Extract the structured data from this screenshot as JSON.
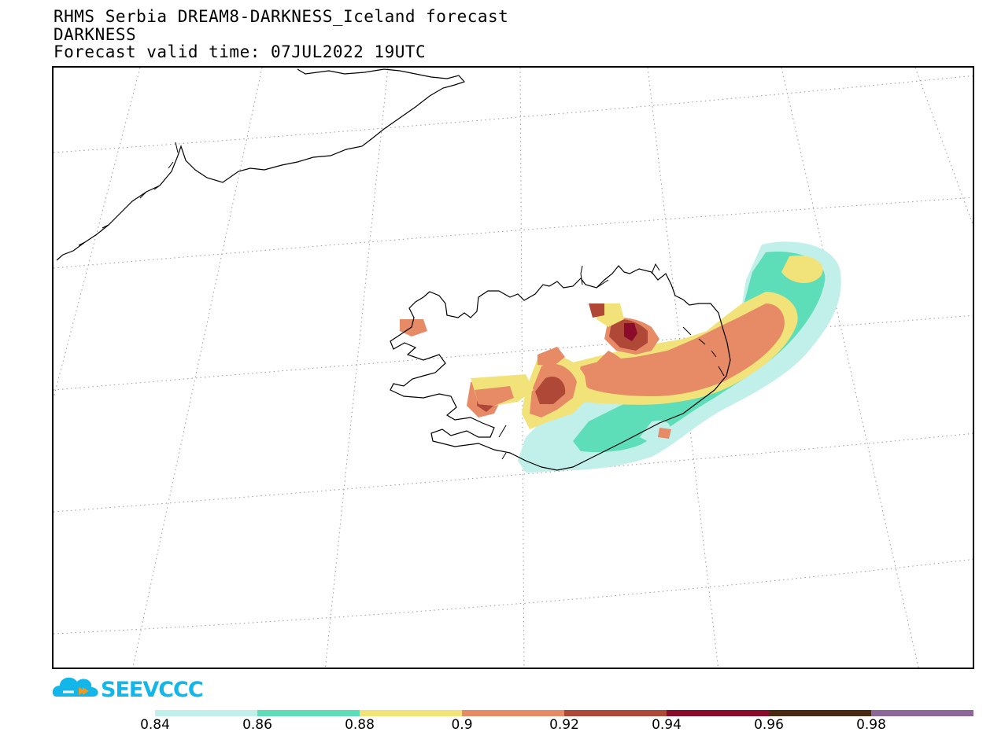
{
  "header": {
    "line1": "RHMS Serbia DREAM8-DARKNESS_Iceland forecast",
    "line2": "DARKNESS",
    "line3": "Forecast valid time: 07JUL2022 19UTC"
  },
  "logo": {
    "text": "SEEVCCC",
    "icon": "cloud-logo-icon",
    "brand_color": "#13b6e8",
    "accent_color": "#f29a1c"
  },
  "map": {
    "region": "Iceland",
    "graticule": "dotted",
    "coastline_color": "#000000"
  },
  "legend": {
    "colors": [
      "#c1f0ea",
      "#5dddb8",
      "#f2e27a",
      "#e78a66",
      "#b04838",
      "#8b0c2a",
      "#4b2a12",
      "#8d679a"
    ],
    "labels": [
      "0.84",
      "0.86",
      "0.88",
      "0.9",
      "0.92",
      "0.94",
      "0.96",
      "0.98"
    ]
  }
}
